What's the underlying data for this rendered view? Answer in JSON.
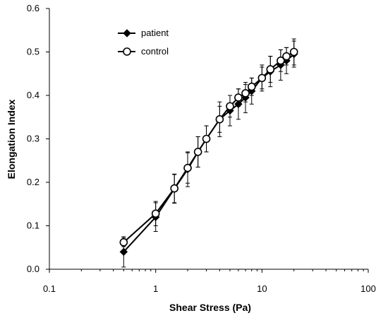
{
  "chart_data": {
    "type": "line",
    "title": "",
    "xlabel": "Shear Stress (Pa)",
    "ylabel": "Elongation Index",
    "x_scale": "log",
    "xlim": [
      0.1,
      100
    ],
    "ylim": [
      0,
      0.6
    ],
    "x_ticks": [
      "0.1",
      "1",
      "10",
      "100"
    ],
    "y_ticks": [
      "0.0",
      "0.1",
      "0.2",
      "0.3",
      "0.4",
      "0.5",
      "0.6"
    ],
    "grid": false,
    "legend_position": "top-left",
    "series": [
      {
        "name": "patient",
        "marker": "filled-diamond",
        "color": "#000000",
        "x": [
          0.5,
          1,
          1.5,
          2,
          2.5,
          3,
          4,
          5,
          6,
          7,
          8,
          10,
          12,
          15,
          17,
          20
        ],
        "y": [
          0.04,
          0.12,
          0.185,
          0.23,
          0.27,
          0.3,
          0.345,
          0.365,
          0.38,
          0.395,
          0.41,
          0.44,
          0.455,
          0.47,
          0.48,
          0.495
        ],
        "err": [
          0.035,
          0.033,
          0.033,
          0.04,
          0.035,
          0.03,
          0.04,
          0.035,
          0.035,
          0.035,
          0.03,
          0.03,
          0.035,
          0.035,
          0.03,
          0.03
        ]
      },
      {
        "name": "control",
        "marker": "open-circle",
        "color": "#000000",
        "x": [
          0.5,
          1,
          1.5,
          2,
          2.5,
          3,
          4,
          5,
          6,
          7,
          8,
          10,
          12,
          15,
          17,
          20
        ],
        "y": [
          0.062,
          0.128,
          0.186,
          0.233,
          0.27,
          0.3,
          0.345,
          0.375,
          0.395,
          0.405,
          0.42,
          0.44,
          0.46,
          0.48,
          0.49,
          0.5
        ],
        "err": [
          0.01,
          0.028,
          0.033,
          0.035,
          0.035,
          0.03,
          0.03,
          0.025,
          0.02,
          0.02,
          0.02,
          0.025,
          0.03,
          0.025,
          0.02,
          0.03
        ]
      }
    ]
  }
}
